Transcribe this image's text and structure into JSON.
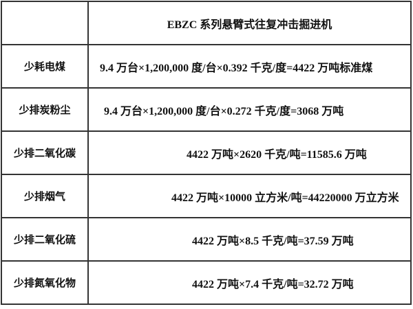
{
  "table": {
    "header": {
      "label": "",
      "title": "EBZC 系列悬臂式往复冲击掘进机"
    },
    "rows": [
      {
        "label": "少耗电煤",
        "value": "9.4 万台×1,200,000 度/台×0.392 千克/度=4422 万吨标准煤"
      },
      {
        "label": "少排炭粉尘",
        "value": "9.4 万台×1,200,000 度/台×0.272 千克/度=3068 万吨"
      },
      {
        "label": "少排二氧化碳",
        "value": "4422 万吨×2620 千克/吨=11585.6 万吨"
      },
      {
        "label": "少排烟气",
        "value": "4422 万吨×10000 立方米/吨=44220000 万立方米"
      },
      {
        "label": "少排二氧化硫",
        "value": "4422 万吨×8.5 千克/吨=37.59 万吨"
      },
      {
        "label": "少排氮氧化物",
        "value": "4422 万吨×7.4 千克/吨=32.72 万吨"
      }
    ]
  }
}
